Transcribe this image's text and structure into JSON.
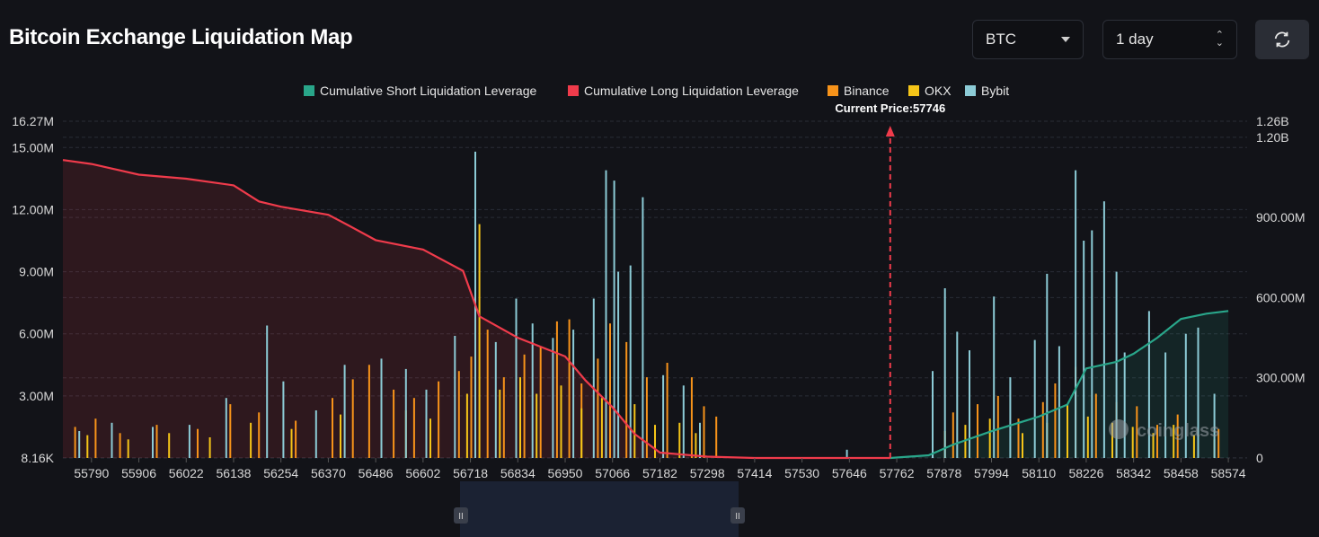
{
  "header": {
    "title": "Bitcoin Exchange Liquidation Map"
  },
  "controls": {
    "coin": "BTC",
    "range": "1 day",
    "refresh_icon": "refresh-icon"
  },
  "colors": {
    "background": "#121318",
    "short": "#29a68a",
    "long": "#ef3b4b",
    "binance": "#f7931a",
    "okx": "#f5c518",
    "bybit": "#8ccbd6"
  },
  "watermark": "coinglass",
  "chart_data": {
    "type": "bar",
    "legend": [
      "Cumulative Short Liquidation Leverage",
      "Cumulative Long Liquidation Leverage",
      "Binance",
      "OKX",
      "Bybit"
    ],
    "legend_placement": "top-center",
    "current_price_label": "Current Price:57746",
    "current_price": 57746,
    "x_range": [
      55720,
      58620
    ],
    "x_ticks": [
      "55790",
      "55906",
      "56022",
      "56138",
      "56254",
      "56370",
      "56486",
      "56602",
      "56718",
      "56834",
      "56950",
      "57066",
      "57182",
      "57298",
      "57414",
      "57530",
      "57646",
      "57762",
      "57878",
      "57994",
      "58110",
      "58226",
      "58342",
      "58458",
      "58574"
    ],
    "y_left_ticks": [
      "16.27M",
      "15.00M",
      "12.00M",
      "9.00M",
      "6.00M",
      "3.00M",
      "8.16K"
    ],
    "y_left_range": [
      0,
      16270000
    ],
    "y_right_ticks": [
      "1.26B",
      "1.20B",
      "900.00M",
      "600.00M",
      "300.00M",
      "0"
    ],
    "y_right_range": [
      0,
      1260000000
    ],
    "grid": true,
    "series": [
      {
        "name": "Cumulative Long Liquidation Leverage",
        "type": "area",
        "axis": "right",
        "x": [
          55720,
          55790,
          55906,
          56022,
          56138,
          56200,
          56254,
          56370,
          56420,
          56486,
          56602,
          56700,
          56740,
          56834,
          56950,
          57000,
          57066,
          57120,
          57182,
          57298,
          57414,
          57746
        ],
        "values": [
          1115000000,
          1100000000,
          1060000000,
          1045000000,
          1020000000,
          960000000,
          940000000,
          910000000,
          870000000,
          815000000,
          780000000,
          700000000,
          530000000,
          450000000,
          380000000,
          290000000,
          190000000,
          90000000,
          20000000,
          5000000,
          0,
          0
        ]
      },
      {
        "name": "Cumulative Short Liquidation Leverage",
        "type": "area",
        "axis": "right",
        "x": [
          57746,
          57840,
          57900,
          57994,
          58110,
          58180,
          58226,
          58300,
          58342,
          58400,
          58458,
          58520,
          58574
        ],
        "values": [
          0,
          10000000,
          50000000,
          100000000,
          155000000,
          200000000,
          335000000,
          360000000,
          390000000,
          450000000,
          520000000,
          540000000,
          550000000
        ]
      },
      {
        "name": "Binance",
        "type": "bar",
        "axis": "left",
        "x": [
          55750,
          55800,
          55860,
          55950,
          56050,
          56130,
          56200,
          56290,
          56380,
          56430,
          56470,
          56530,
          56580,
          56640,
          56690,
          56720,
          56760,
          56800,
          56850,
          56890,
          56930,
          56960,
          56990,
          57030,
          57060,
          57100,
          57150,
          57200,
          57260,
          57290,
          57320,
          57900,
          57960,
          58010,
          58060,
          58120,
          58150,
          58200,
          58250,
          58300,
          58350,
          58400,
          58450,
          58500,
          58550
        ],
        "values": [
          1500000,
          1900000,
          1200000,
          1600000,
          1400000,
          2600000,
          2200000,
          1800000,
          2900000,
          3800000,
          4500000,
          3300000,
          2900000,
          3700000,
          4200000,
          4900000,
          6200000,
          3900000,
          5000000,
          5400000,
          6600000,
          6700000,
          3600000,
          4800000,
          6500000,
          5600000,
          3900000,
          4600000,
          3900000,
          2500000,
          2000000,
          2200000,
          2600000,
          3000000,
          1900000,
          2700000,
          3600000,
          4400000,
          3100000,
          2700000,
          2500000,
          1600000,
          2100000,
          2300000,
          1400000
        ]
      },
      {
        "name": "OKX",
        "type": "bar",
        "axis": "left",
        "x": [
          55780,
          55880,
          55980,
          56080,
          56180,
          56280,
          56400,
          56500,
          56560,
          56620,
          56710,
          56740,
          56790,
          56840,
          56880,
          56940,
          56990,
          57040,
          57120,
          57170,
          57230,
          57270,
          57880,
          57930,
          57990,
          58070,
          58130,
          58180,
          58230,
          58290,
          58340,
          58390,
          58440,
          58490,
          58540
        ],
        "values": [
          1100000,
          900000,
          1200000,
          1000000,
          1700000,
          1400000,
          2100000,
          2500000,
          2300000,
          1900000,
          3100000,
          11300000,
          3300000,
          3900000,
          3100000,
          3500000,
          2400000,
          2900000,
          2600000,
          1600000,
          1700000,
          1200000,
          1300000,
          1600000,
          1900000,
          1200000,
          1700000,
          2600000,
          2000000,
          1700000,
          1500000,
          1200000,
          1600000,
          1100000,
          900000
        ]
      },
      {
        "name": "Bybit",
        "type": "bar",
        "axis": "left",
        "x": [
          55760,
          55840,
          55940,
          56030,
          56120,
          56220,
          56260,
          56340,
          56410,
          56500,
          56560,
          56610,
          56680,
          56730,
          56780,
          56830,
          56870,
          56920,
          56970,
          57020,
          57050,
          57070,
          57080,
          57110,
          57140,
          57190,
          57240,
          57280,
          57640,
          57850,
          57880,
          57910,
          57940,
          58000,
          58040,
          58100,
          58130,
          58160,
          58200,
          58220,
          58240,
          58270,
          58300,
          58320,
          58380,
          58420,
          58470,
          58500,
          58540
        ],
        "values": [
          1300000,
          1700000,
          1500000,
          1600000,
          2900000,
          6400000,
          3700000,
          2300000,
          4500000,
          4800000,
          4300000,
          3300000,
          5900000,
          14800000,
          5600000,
          7700000,
          6500000,
          5800000,
          6200000,
          7700000,
          13900000,
          13400000,
          9000000,
          9300000,
          12600000,
          4000000,
          3500000,
          1700000,
          400000,
          4200000,
          8200000,
          6100000,
          5200000,
          7800000,
          3900000,
          5700000,
          8900000,
          5400000,
          13900000,
          10500000,
          11000000,
          12400000,
          9000000,
          5100000,
          7100000,
          5100000,
          6000000,
          6300000,
          3100000
        ]
      }
    ]
  }
}
